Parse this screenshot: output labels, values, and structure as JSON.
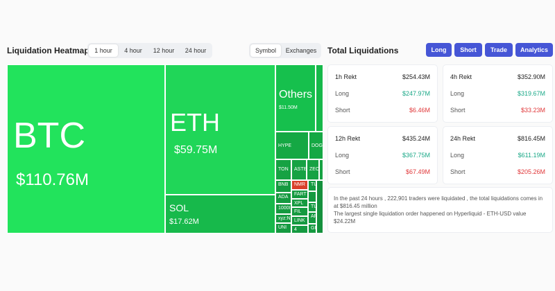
{
  "header": {
    "title": "Liquidation Heatmap",
    "time_tabs": [
      "1 hour",
      "4 hour",
      "12 hour",
      "24 hour"
    ],
    "view_tabs": [
      "Symbol",
      "Exchanges"
    ],
    "total_title": "Total Liquidations",
    "buttons": [
      "Long",
      "Short",
      "Trade",
      "Analytics"
    ]
  },
  "heatmap": {
    "tiles": [
      {
        "symbol": "BTC",
        "amount": "$110.76M"
      },
      {
        "symbol": "ETH",
        "amount": "$59.75M"
      },
      {
        "symbol": "SOL",
        "amount": "$17.62M"
      },
      {
        "symbol": "Others",
        "amount": "$11.50M"
      }
    ],
    "small_tiles": [
      "HYPE",
      "DOGE",
      "TON",
      "ASTE",
      "ZEC",
      "BNB",
      "NMR",
      "FART",
      "XPL",
      "FIL",
      "LINK",
      "ADA",
      "1000I",
      "xyz:N",
      "UNI",
      "4",
      "TIA",
      "TIA",
      "ARE",
      "GR"
    ]
  },
  "cards": [
    {
      "label": "1h Rekt",
      "total": "$254.43M",
      "long_label": "Long",
      "long": "$247.97M",
      "short_label": "Short",
      "short": "$6.46M"
    },
    {
      "label": "4h Rekt",
      "total": "$352.90M",
      "long_label": "Long",
      "long": "$319.67M",
      "short_label": "Short",
      "short": "$33.23M"
    },
    {
      "label": "12h Rekt",
      "total": "$435.24M",
      "long_label": "Long",
      "long": "$367.75M",
      "short_label": "Short",
      "short": "$67.49M"
    },
    {
      "label": "24h Rekt",
      "total": "$816.45M",
      "long_label": "Long",
      "long": "$611.19M",
      "short_label": "Short",
      "short": "$205.26M"
    }
  ],
  "summary": {
    "line1": "In the past 24 hours , 222,901 traders were liquidated , the total liquidations comes in at $816.45 million",
    "line2": "The largest single liquidation order happened on Hyperliquid - ETH-USD value $24.22M"
  }
}
